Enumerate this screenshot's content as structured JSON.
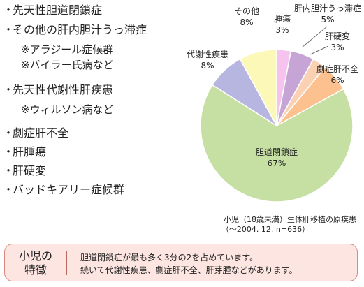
{
  "causes_list": [
    {
      "text": "先天性胆道閉鎖症",
      "sub": []
    },
    {
      "text": "その他の肝内胆汁うっ滞症",
      "sub": [
        "※アラジール症候群",
        "※バイラー氏病など"
      ]
    },
    {
      "text": "先天性代謝性肝疾患",
      "sub": [
        "※ウィルソン病など"
      ]
    },
    {
      "text": "劇症肝不全",
      "sub": []
    },
    {
      "text": "肝腫瘍",
      "sub": []
    },
    {
      "text": "肝硬変",
      "sub": []
    },
    {
      "text": "バッドキアリー症候群",
      "sub": []
    }
  ],
  "bullet": "・",
  "chart_data": {
    "type": "pie",
    "title": "小児（18歳未満）生体肝移植の原疾患",
    "subtitle": "（〜2004. 12. n=636）",
    "slices": [
      {
        "label": "腫瘍",
        "value": 3,
        "value_label": "3%",
        "color": "#f6c2ee"
      },
      {
        "label": "肝内胆汁うっ滞症",
        "value": 5,
        "value_label": "5%",
        "color": "#c6a4d6"
      },
      {
        "label": "肝硬変",
        "value": 3,
        "value_label": "3%",
        "color": "#fbd1b4"
      },
      {
        "label": "劇症肝不全",
        "value": 6,
        "value_label": "6%",
        "color": "#fcc18e"
      },
      {
        "label": "胆道閉鎖症",
        "value": 67,
        "value_label": "67%",
        "color": "#c6e0a3"
      },
      {
        "label": "代謝性疾患",
        "value": 8,
        "value_label": "8%",
        "color": "#b6b6e0"
      },
      {
        "label": "その他",
        "value": 8,
        "value_label": "8%",
        "color": "#fbf8b8"
      }
    ]
  },
  "feature_box": {
    "title_line1": "小児の",
    "title_line2": "特徴",
    "text_line1": "胆道閉鎖症が最も多く3分の2を占めています。",
    "text_line2": "続いて代謝性疾患、劇症肝不全、肝芽腫などがあります。"
  }
}
